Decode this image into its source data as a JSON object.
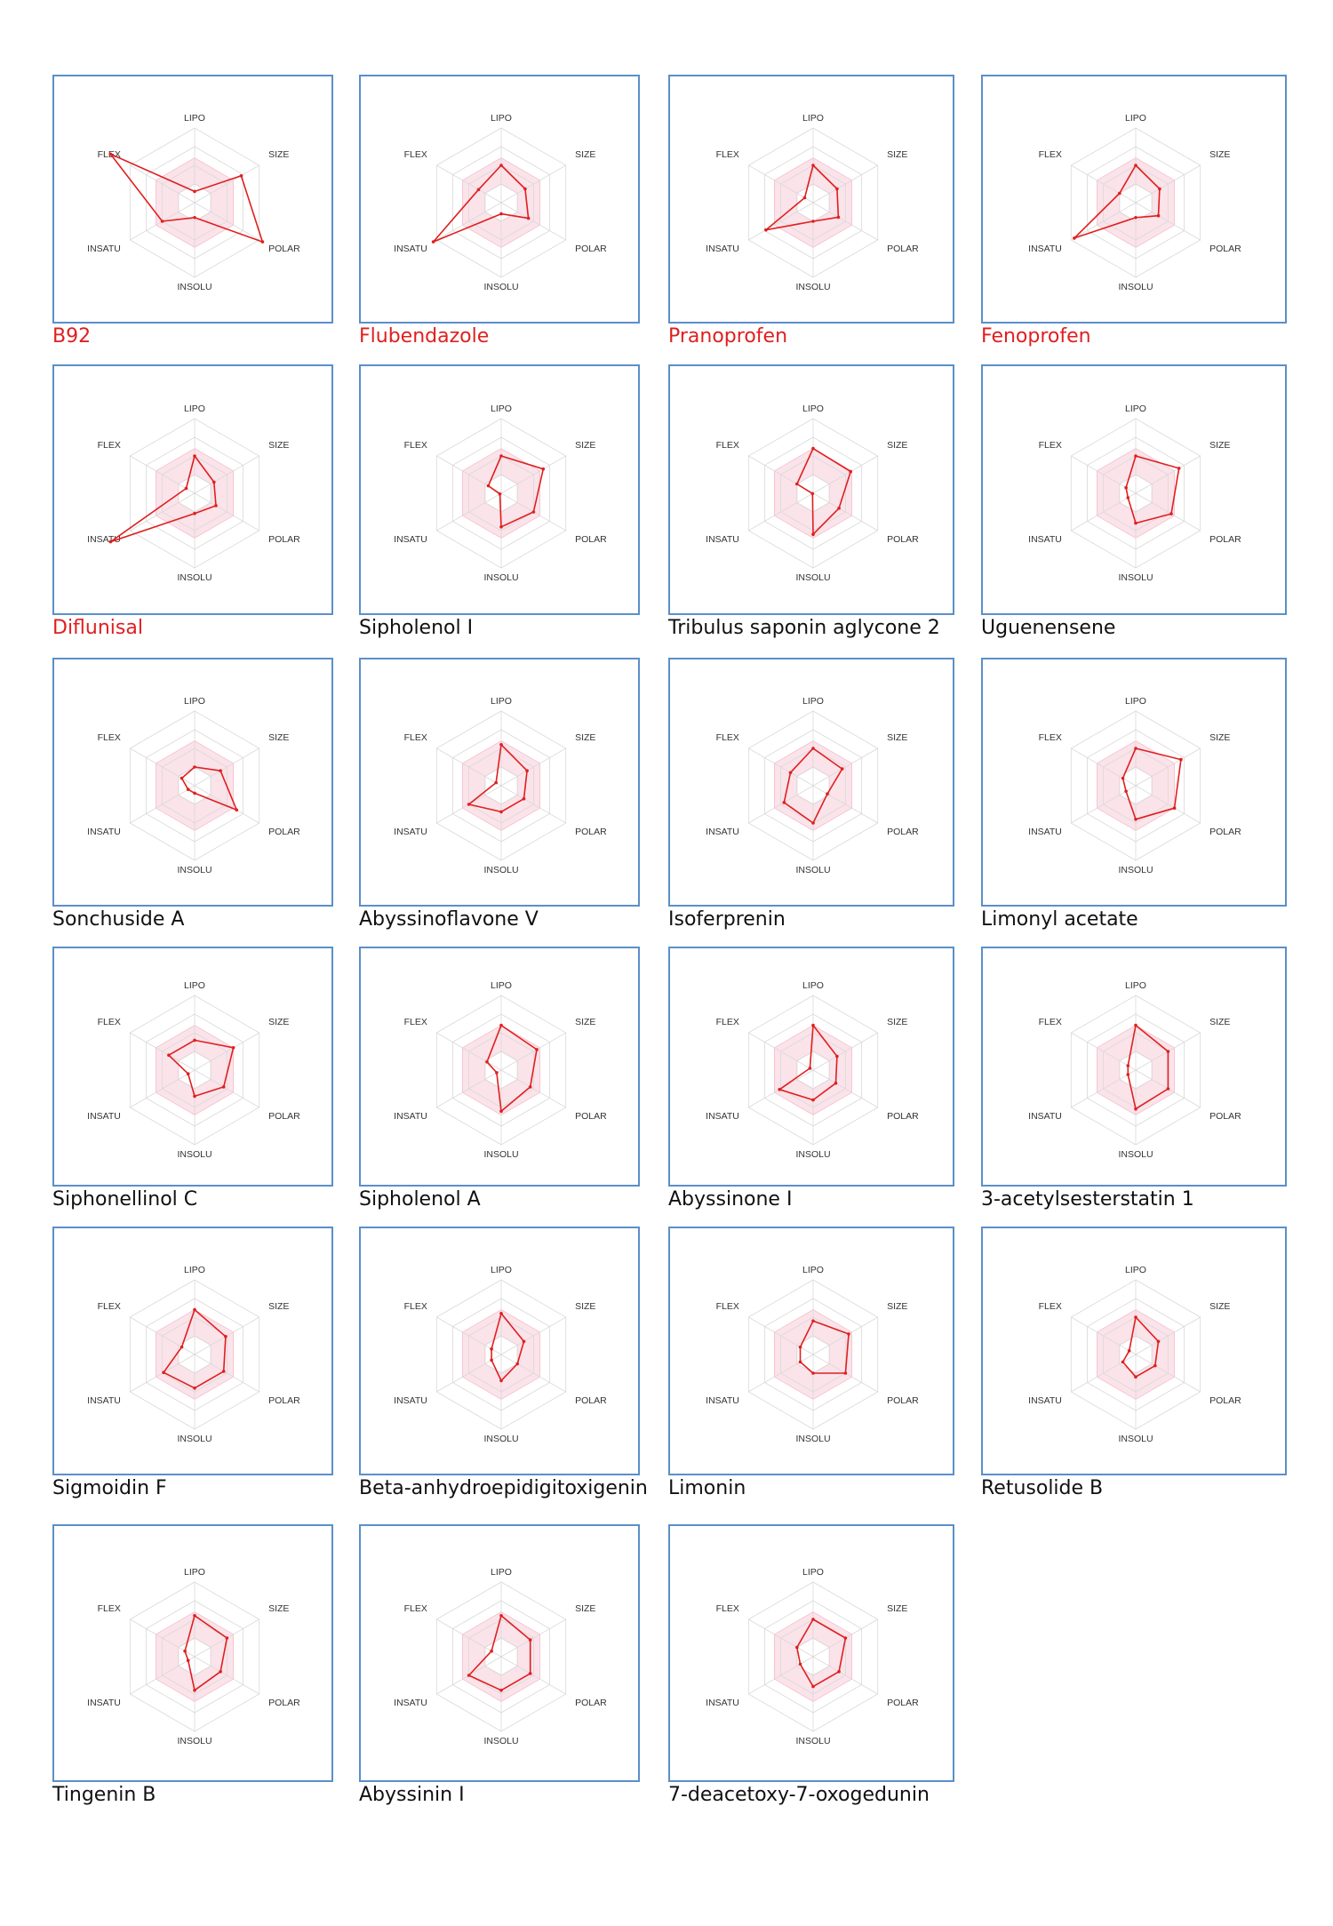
{
  "axis_labels": [
    "LIPO",
    "SIZE",
    "POLAR",
    "INSOLU",
    "INSATU",
    "FLEX"
  ],
  "colors": {
    "frame": "#5b8fc9",
    "line": "#e01f1f",
    "band_fill": "#fbe3ea",
    "grid": "#d9d9d9",
    "highlight_label": "#e01f1f",
    "label": "#111111"
  },
  "chart_data": {
    "type": "radar",
    "axes": [
      "LIPO",
      "SIZE",
      "POLAR",
      "INSOLU",
      "INSATU",
      "FLEX"
    ],
    "range": [
      0,
      1
    ],
    "grid_levels": 4,
    "optimal_band": [
      0.25,
      0.6
    ],
    "panels": [
      {
        "name": "B92",
        "highlight": true,
        "values": [
          0.15,
          0.72,
          1.05,
          0.2,
          0.5,
          1.3
        ]
      },
      {
        "name": "Flubendazole",
        "highlight": true,
        "values": [
          0.5,
          0.37,
          0.42,
          0.15,
          1.05,
          0.35
        ]
      },
      {
        "name": "Pranoprofen",
        "highlight": true,
        "values": [
          0.5,
          0.37,
          0.39,
          0.25,
          0.73,
          0.13
        ]
      },
      {
        "name": "Fenoprofen",
        "highlight": true,
        "values": [
          0.5,
          0.37,
          0.35,
          0.2,
          0.95,
          0.25
        ]
      },
      {
        "name": "Diflunisal",
        "highlight": true,
        "values": [
          0.5,
          0.3,
          0.33,
          0.27,
          1.3,
          0.13
        ]
      },
      {
        "name": "Sipholenol I",
        "highlight": false,
        "values": [
          0.5,
          0.65,
          0.5,
          0.45,
          0.02,
          0.2
        ]
      },
      {
        "name": "Tribulus saponin aglycone 2",
        "highlight": false,
        "values": [
          0.6,
          0.58,
          0.4,
          0.55,
          0.01,
          0.25
        ]
      },
      {
        "name": "Uguenensene",
        "highlight": false,
        "values": [
          0.5,
          0.67,
          0.55,
          0.4,
          0.12,
          0.15
        ]
      },
      {
        "name": "Sonchuside A",
        "highlight": false,
        "values": [
          0.25,
          0.4,
          0.65,
          0.1,
          0.1,
          0.2
        ]
      },
      {
        "name": "Abyssinoflavone V",
        "highlight": false,
        "values": [
          0.55,
          0.4,
          0.35,
          0.35,
          0.5,
          0.08
        ]
      },
      {
        "name": "Isoferprenin",
        "highlight": false,
        "values": [
          0.5,
          0.45,
          0.22,
          0.5,
          0.45,
          0.35
        ]
      },
      {
        "name": "Limonyl acetate",
        "highlight": false,
        "values": [
          0.5,
          0.7,
          0.6,
          0.45,
          0.15,
          0.2
        ]
      },
      {
        "name": "Siphonellinol C",
        "highlight": false,
        "values": [
          0.4,
          0.6,
          0.45,
          0.35,
          0.1,
          0.4
        ]
      },
      {
        "name": "Sipholenol A",
        "highlight": false,
        "values": [
          0.6,
          0.55,
          0.45,
          0.55,
          0.07,
          0.22
        ]
      },
      {
        "name": "Abyssinone I",
        "highlight": false,
        "values": [
          0.6,
          0.37,
          0.35,
          0.4,
          0.52,
          0.05
        ]
      },
      {
        "name": "3-acetylsesterstatin 1",
        "highlight": false,
        "values": [
          0.6,
          0.5,
          0.5,
          0.52,
          0.12,
          0.12
        ]
      },
      {
        "name": "Sigmoidin F",
        "highlight": false,
        "values": [
          0.6,
          0.48,
          0.45,
          0.45,
          0.48,
          0.2
        ]
      },
      {
        "name": "Beta-anhydroepidigitoxigenin",
        "highlight": false,
        "values": [
          0.55,
          0.35,
          0.25,
          0.35,
          0.15,
          0.15
        ]
      },
      {
        "name": "Limonin",
        "highlight": false,
        "values": [
          0.45,
          0.55,
          0.5,
          0.25,
          0.2,
          0.2
        ]
      },
      {
        "name": "Retusolide B",
        "highlight": false,
        "values": [
          0.5,
          0.35,
          0.3,
          0.3,
          0.2,
          0.1
        ]
      },
      {
        "name": "Tingenin B",
        "highlight": false,
        "values": [
          0.55,
          0.5,
          0.4,
          0.45,
          0.1,
          0.15
        ]
      },
      {
        "name": "Abyssinin I",
        "highlight": false,
        "values": [
          0.55,
          0.45,
          0.45,
          0.45,
          0.5,
          0.15
        ]
      },
      {
        "name": "7-deacetoxy-7-oxogedunin",
        "highlight": false,
        "values": [
          0.5,
          0.5,
          0.4,
          0.4,
          0.2,
          0.25
        ]
      }
    ]
  }
}
